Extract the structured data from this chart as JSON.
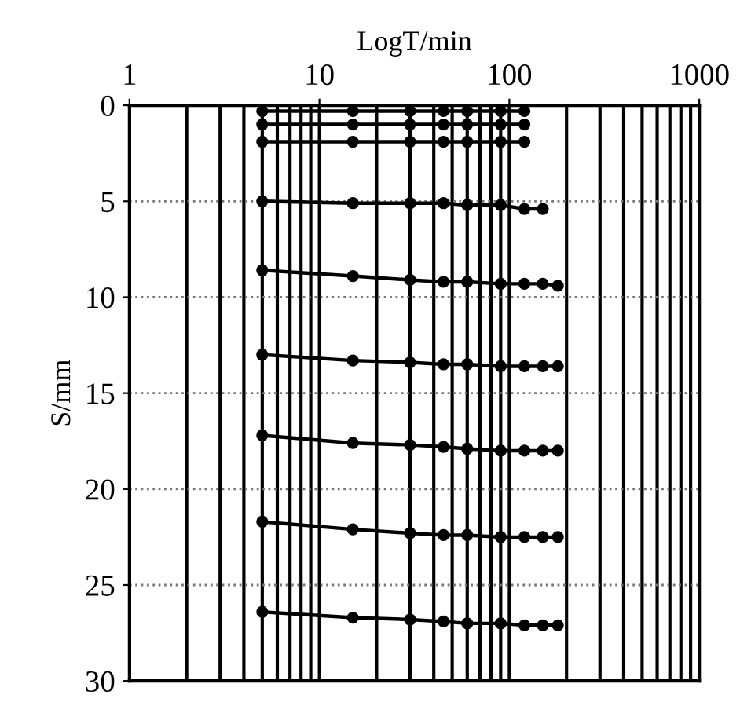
{
  "chart_data": {
    "type": "line",
    "xlabel": "LogT/min",
    "ylabel": "S/mm",
    "log": "x",
    "xlim": [
      1,
      1000
    ],
    "xticks": [
      1,
      10,
      100,
      1000
    ],
    "ylim": [
      30,
      0
    ],
    "yticks": [
      0,
      5,
      10,
      15,
      20,
      25,
      30
    ],
    "grid": true,
    "legend": false,
    "marker": "circle",
    "line_style": "solid",
    "series": [
      {
        "color": "#000000",
        "x": [
          5,
          15,
          30,
          45,
          60,
          90,
          120
        ],
        "values": [
          0.3,
          0.3,
          0.3,
          0.3,
          0.3,
          0.3,
          0.3
        ]
      },
      {
        "color": "#000000",
        "x": [
          5,
          15,
          30,
          45,
          60,
          90,
          120
        ],
        "values": [
          1.0,
          1.0,
          1.0,
          1.0,
          1.0,
          1.0,
          1.0
        ]
      },
      {
        "color": "#000000",
        "x": [
          5,
          15,
          30,
          45,
          60,
          90,
          120
        ],
        "values": [
          1.9,
          1.9,
          1.9,
          1.9,
          1.9,
          1.9,
          1.9
        ]
      },
      {
        "color": "#000000",
        "x": [
          5,
          15,
          30,
          45,
          60,
          90,
          120,
          150
        ],
        "values": [
          5.0,
          5.1,
          5.1,
          5.1,
          5.2,
          5.2,
          5.4,
          5.4
        ]
      },
      {
        "color": "#000000",
        "x": [
          5,
          15,
          30,
          45,
          60,
          90,
          120,
          150,
          180
        ],
        "values": [
          8.6,
          8.9,
          9.1,
          9.2,
          9.2,
          9.3,
          9.3,
          9.3,
          9.4
        ]
      },
      {
        "color": "#000000",
        "x": [
          5,
          15,
          30,
          45,
          60,
          90,
          120,
          150,
          180
        ],
        "values": [
          13.0,
          13.3,
          13.4,
          13.5,
          13.5,
          13.6,
          13.6,
          13.6,
          13.6
        ]
      },
      {
        "color": "#000000",
        "x": [
          5,
          15,
          30,
          45,
          60,
          90,
          120,
          150,
          180
        ],
        "values": [
          17.2,
          17.6,
          17.7,
          17.8,
          17.9,
          18.0,
          18.0,
          18.0,
          18.0
        ]
      },
      {
        "color": "#000000",
        "x": [
          5,
          15,
          30,
          45,
          60,
          90,
          120,
          150,
          180
        ],
        "values": [
          21.7,
          22.1,
          22.3,
          22.4,
          22.4,
          22.5,
          22.5,
          22.5,
          22.5
        ]
      },
      {
        "color": "#000000",
        "x": [
          5,
          15,
          30,
          45,
          60,
          90,
          120,
          150,
          180
        ],
        "values": [
          26.4,
          26.7,
          26.8,
          26.9,
          27.0,
          27.0,
          27.1,
          27.1,
          27.1
        ]
      }
    ]
  }
}
